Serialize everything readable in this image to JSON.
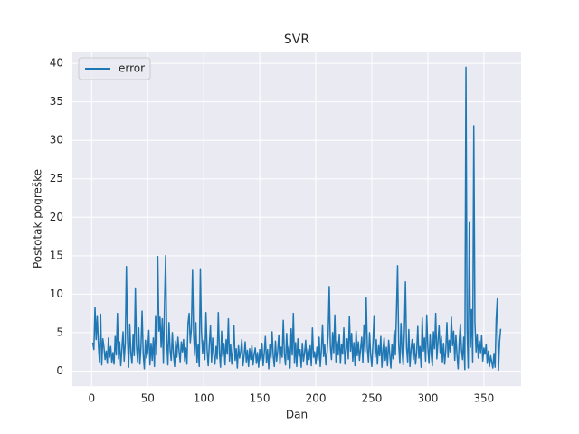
{
  "chart_data": {
    "type": "line",
    "title": "SVR",
    "xlabel": "Dan",
    "ylabel": "Postotak pogreške",
    "x": [
      1,
      2,
      3,
      4,
      5,
      6,
      7,
      8,
      9,
      10,
      11,
      12,
      13,
      14,
      15,
      16,
      17,
      18,
      19,
      20,
      21,
      22,
      23,
      24,
      25,
      26,
      27,
      28,
      29,
      30,
      31,
      32,
      33,
      34,
      35,
      36,
      37,
      38,
      39,
      40,
      41,
      42,
      43,
      44,
      45,
      46,
      47,
      48,
      49,
      50,
      51,
      52,
      53,
      54,
      55,
      56,
      57,
      58,
      59,
      60,
      61,
      62,
      63,
      64,
      65,
      66,
      67,
      68,
      69,
      70,
      71,
      72,
      73,
      74,
      75,
      76,
      77,
      78,
      79,
      80,
      81,
      82,
      83,
      84,
      85,
      86,
      87,
      88,
      89,
      90,
      91,
      92,
      93,
      94,
      95,
      96,
      97,
      98,
      99,
      100,
      101,
      102,
      103,
      104,
      105,
      106,
      107,
      108,
      109,
      110,
      111,
      112,
      113,
      114,
      115,
      116,
      117,
      118,
      119,
      120,
      121,
      122,
      123,
      124,
      125,
      126,
      127,
      128,
      129,
      130,
      131,
      132,
      133,
      134,
      135,
      136,
      137,
      138,
      139,
      140,
      141,
      142,
      143,
      144,
      145,
      146,
      147,
      148,
      149,
      150,
      151,
      152,
      153,
      154,
      155,
      156,
      157,
      158,
      159,
      160,
      161,
      162,
      163,
      164,
      165,
      166,
      167,
      168,
      169,
      170,
      171,
      172,
      173,
      174,
      175,
      176,
      177,
      178,
      179,
      180,
      181,
      182,
      183,
      184,
      185,
      186,
      187,
      188,
      189,
      190,
      191,
      192,
      193,
      194,
      195,
      196,
      197,
      198,
      199,
      200,
      201,
      202,
      203,
      204,
      205,
      206,
      207,
      208,
      209,
      210,
      211,
      212,
      213,
      214,
      215,
      216,
      217,
      218,
      219,
      220,
      221,
      222,
      223,
      224,
      225,
      226,
      227,
      228,
      229,
      230,
      231,
      232,
      233,
      234,
      235,
      236,
      237,
      238,
      239,
      240,
      241,
      242,
      243,
      244,
      245,
      246,
      247,
      248,
      249,
      250,
      251,
      252,
      253,
      254,
      255,
      256,
      257,
      258,
      259,
      260,
      261,
      262,
      263,
      264,
      265,
      266,
      267,
      268,
      269,
      270,
      271,
      272,
      273,
      274,
      275,
      276,
      277,
      278,
      279,
      280,
      281,
      282,
      283,
      284,
      285,
      286,
      287,
      288,
      289,
      290,
      291,
      292,
      293,
      294,
      295,
      296,
      297,
      298,
      299,
      300,
      301,
      302,
      303,
      304,
      305,
      306,
      307,
      308,
      309,
      310,
      311,
      312,
      313,
      314,
      315,
      316,
      317,
      318,
      319,
      320,
      321,
      322,
      323,
      324,
      325,
      326,
      327,
      328,
      329,
      330,
      331,
      332,
      333,
      334,
      335,
      336,
      337,
      338,
      339,
      340,
      341,
      342,
      343,
      344,
      345,
      346,
      347,
      348,
      349,
      350,
      351,
      352,
      353,
      354,
      355,
      356,
      357,
      358,
      359,
      360,
      361,
      362,
      363,
      364,
      365
    ],
    "series": [
      {
        "name": "error",
        "color": "#1f77b4",
        "values": [
          3.7,
          2.8,
          8.3,
          4.1,
          7.2,
          3.5,
          1.2,
          7.4,
          0.8,
          4.2,
          3.1,
          1.5,
          2.6,
          1.0,
          4.3,
          1.8,
          3.2,
          1.1,
          2.4,
          0.9,
          4.5,
          2.1,
          7.5,
          1.6,
          3.8,
          0.7,
          2.9,
          5.1,
          1.3,
          3.6,
          13.6,
          4.2,
          0.5,
          6.1,
          2.3,
          1.0,
          4.8,
          2.0,
          10.8,
          3.3,
          1.2,
          5.6,
          0.9,
          3.1,
          7.8,
          2.2,
          0.3,
          4.0,
          1.7,
          2.5,
          5.3,
          0.8,
          3.6,
          1.4,
          4.3,
          0.6,
          7.2,
          2.1,
          14.9,
          5.2,
          7.0,
          3.1,
          6.8,
          1.0,
          8.5,
          15.0,
          4.1,
          0.8,
          6.3,
          2.7,
          1.4,
          5.0,
          2.2,
          0.6,
          3.9,
          1.8,
          4.4,
          2.6,
          1.2,
          3.8,
          2.5,
          4.1,
          1.3,
          3.0,
          0.9,
          6.2,
          7.5,
          3.7,
          5.5,
          13.1,
          4.8,
          2.0,
          6.3,
          1.1,
          3.4,
          0.6,
          13.3,
          5.1,
          2.3,
          4.0,
          1.5,
          7.6,
          2.8,
          0.7,
          3.5,
          5.9,
          1.2,
          4.3,
          2.1,
          0.9,
          3.2,
          1.6,
          7.6,
          2.4,
          0.5,
          5.2,
          1.9,
          3.6,
          0.8,
          4.1,
          2.2,
          6.8,
          1.3,
          3.5,
          0.9,
          2.6,
          5.9,
          1.4,
          2.9,
          0.4,
          3.3,
          1.7,
          2.5,
          4.1,
          0.7,
          2.0,
          3.8,
          1.2,
          2.7,
          0.6,
          2.9,
          1.5,
          3.3,
          0.8,
          2.2,
          3.0,
          1.0,
          2.4,
          0.5,
          2.8,
          1.4,
          3.6,
          0.7,
          2.3,
          4.5,
          1.1,
          2.8,
          0.3,
          3.4,
          1.7,
          5.1,
          2.0,
          0.6,
          3.9,
          1.3,
          2.6,
          4.7,
          0.9,
          3.1,
          1.8,
          6.6,
          2.2,
          0.8,
          4.9,
          1.5,
          3.2,
          0.4,
          5.5,
          2.1,
          7.5,
          1.0,
          3.7,
          0.6,
          4.2,
          1.9,
          2.8,
          0.5,
          3.6,
          1.3,
          2.4,
          4.0,
          0.8,
          2.9,
          1.5,
          3.3,
          0.7,
          5.6,
          1.8,
          2.5,
          0.9,
          3.1,
          1.4,
          4.4,
          0.6,
          2.7,
          6.0,
          1.9,
          3.4,
          0.8,
          2.3,
          4.6,
          11.0,
          3.2,
          1.5,
          5.0,
          2.4,
          7.3,
          1.2,
          3.9,
          2.1,
          4.8,
          1.0,
          3.5,
          2.2,
          5.6,
          0.9,
          2.7,
          4.2,
          1.6,
          7.1,
          2.6,
          4.9,
          1.3,
          3.7,
          0.7,
          5.2,
          2.0,
          3.8,
          1.4,
          2.9,
          4.4,
          1.1,
          6.0,
          2.5,
          9.5,
          3.0,
          1.2,
          5.0,
          2.1,
          0.6,
          3.6,
          7.2,
          1.8,
          4.1,
          0.9,
          3.3,
          2.0,
          4.5,
          0.5,
          2.8,
          4.3,
          1.4,
          3.1,
          0.7,
          4.0,
          2.2,
          0.4,
          3.5,
          1.6,
          5.3,
          2.1,
          7.7,
          13.7,
          3.4,
          1.0,
          6.2,
          2.5,
          0.8,
          4.9,
          11.6,
          3.0,
          1.2,
          5.4,
          0.6,
          2.8,
          4.1,
          1.5,
          3.6,
          0.9,
          2.4,
          5.8,
          1.7,
          3.2,
          0.5,
          6.9,
          2.6,
          4.3,
          1.3,
          7.3,
          3.0,
          1.0,
          4.8,
          2.2,
          0.7,
          5.1,
          2.9,
          7.5,
          1.6,
          3.8,
          5.9,
          2.4,
          4.5,
          1.2,
          3.6,
          0.9,
          2.7,
          6.3,
          1.8,
          4.0,
          2.5,
          7.0,
          3.3,
          5.2,
          1.4,
          4.7,
          2.1,
          0.3,
          3.9,
          6.1,
          2.8,
          1.5,
          4.4,
          0.2,
          39.5,
          5.3,
          0.4,
          19.4,
          3.1,
          8.0,
          1.2,
          31.9,
          6.4,
          2.5,
          4.8,
          1.7,
          3.9,
          2.4,
          4.6,
          1.3,
          3.0,
          2.2,
          3.5,
          1.0,
          2.6,
          0.6,
          2.0,
          1.2,
          0.4,
          2.3,
          0.5,
          6.8,
          9.4,
          0.1,
          3.8,
          5.5
        ]
      }
    ],
    "xlim": [
      -17.2,
      383.2
    ],
    "ylim": [
      -1.97,
      41.47
    ],
    "xticks": [
      0,
      50,
      100,
      150,
      200,
      250,
      300,
      350
    ],
    "yticks": [
      0,
      5,
      10,
      15,
      20,
      25,
      30,
      35,
      40
    ],
    "grid": true,
    "legend": "upper left"
  }
}
